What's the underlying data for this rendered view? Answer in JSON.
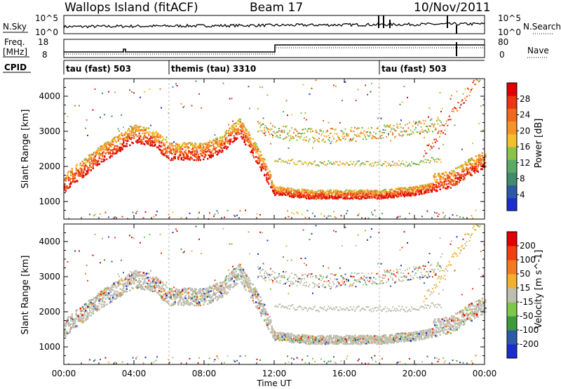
{
  "header": {
    "station": "Wallops Island (fitACF)",
    "beam": "Beam 17",
    "date": "10/Nov/2011"
  },
  "top_panels": {
    "nsky_label": "N.Sky",
    "nsky_ticks": [
      "10^5",
      "10^0"
    ],
    "nsearch_label": "N.Search",
    "freq_label_1": "Freq.",
    "freq_label_2": "[MHz]",
    "freq_ticks": [
      "18",
      "8"
    ],
    "nave_label": "Nave",
    "nave_ticks": [
      "80",
      "0"
    ],
    "cpid_label": "CPID"
  },
  "cpid_segments": [
    {
      "label": "tau (fast) 503",
      "start_hour": 0
    },
    {
      "label": "themis (tau) 3310",
      "start_hour": 6
    },
    {
      "label": "tau (fast) 503",
      "start_hour": 18
    }
  ],
  "colors": {
    "power_scale": [
      "#1a2ccc",
      "#2c5aa8",
      "#3f8b6c",
      "#5aaa66",
      "#8cc24a",
      "#f0c030",
      "#f49428",
      "#f06a1e",
      "#ea3414",
      "#e00000"
    ],
    "velocity_scale": [
      "#e00000",
      "#f04010",
      "#f47a20",
      "#f0b030",
      "#bdbdb0",
      "#7dc84a",
      "#3c9a3c",
      "#2c5aa8",
      "#1a2ccc"
    ]
  },
  "chart_data": [
    {
      "type": "heatmap",
      "panel": "power",
      "xlabel": "Time UT",
      "ylabel": "Slant Range [km]",
      "xlim_hours": [
        0,
        24
      ],
      "ylim": [
        500,
        4500
      ],
      "x_ticks": [
        "00:00",
        "04:00",
        "08:00",
        "12:00",
        "16:00",
        "20:00",
        "00:00"
      ],
      "y_ticks": [
        1000,
        2000,
        3000,
        4000
      ],
      "colorbar_label": "Power [dB]",
      "colorbar_ticks": [
        "28",
        "24",
        "20",
        "16",
        "12",
        "8",
        "4"
      ],
      "colorbar_range": [
        0,
        30
      ],
      "bands": [
        {
          "name": "F-region lower edge",
          "points": [
            [
              0,
              1300
            ],
            [
              1,
              1700
            ],
            [
              2,
              2100
            ],
            [
              3,
              2400
            ],
            [
              4,
              2700
            ],
            [
              5,
              2600
            ],
            [
              6,
              2200
            ],
            [
              8,
              2200
            ],
            [
              9,
              2400
            ],
            [
              10,
              2900
            ],
            [
              11,
              2100
            ],
            [
              12,
              1200
            ],
            [
              14,
              1100
            ],
            [
              18,
              1100
            ],
            [
              20,
              1200
            ],
            [
              22,
              1400
            ],
            [
              23,
              1700
            ],
            [
              24,
              2000
            ]
          ]
        },
        {
          "name": "upper band",
          "points": [
            [
              11,
              3200
            ],
            [
              12,
              3000
            ],
            [
              14,
              2900
            ],
            [
              16,
              2900
            ],
            [
              18,
              3000
            ],
            [
              20,
              3100
            ],
            [
              21,
              3200
            ]
          ]
        },
        {
          "name": "middle band",
          "points": [
            [
              12,
              2200
            ],
            [
              14,
              2100
            ],
            [
              16,
              2100
            ],
            [
              18,
              2100
            ],
            [
              20,
              2100
            ],
            [
              21,
              2200
            ]
          ]
        }
      ]
    },
    {
      "type": "heatmap",
      "panel": "velocity",
      "xlabel": "Time UT",
      "ylabel": "Slant Range [km]",
      "xlim_hours": [
        0,
        24
      ],
      "ylim": [
        500,
        4500
      ],
      "x_ticks": [
        "00:00",
        "04:00",
        "08:00",
        "12:00",
        "16:00",
        "20:00",
        "00:00"
      ],
      "y_ticks": [
        1000,
        2000,
        3000,
        4000
      ],
      "colorbar_label": "Velocity [m s^-1]",
      "colorbar_ticks": [
        "200",
        "100",
        "50",
        "15",
        "-15",
        "-50",
        "-100",
        "-200"
      ]
    }
  ]
}
